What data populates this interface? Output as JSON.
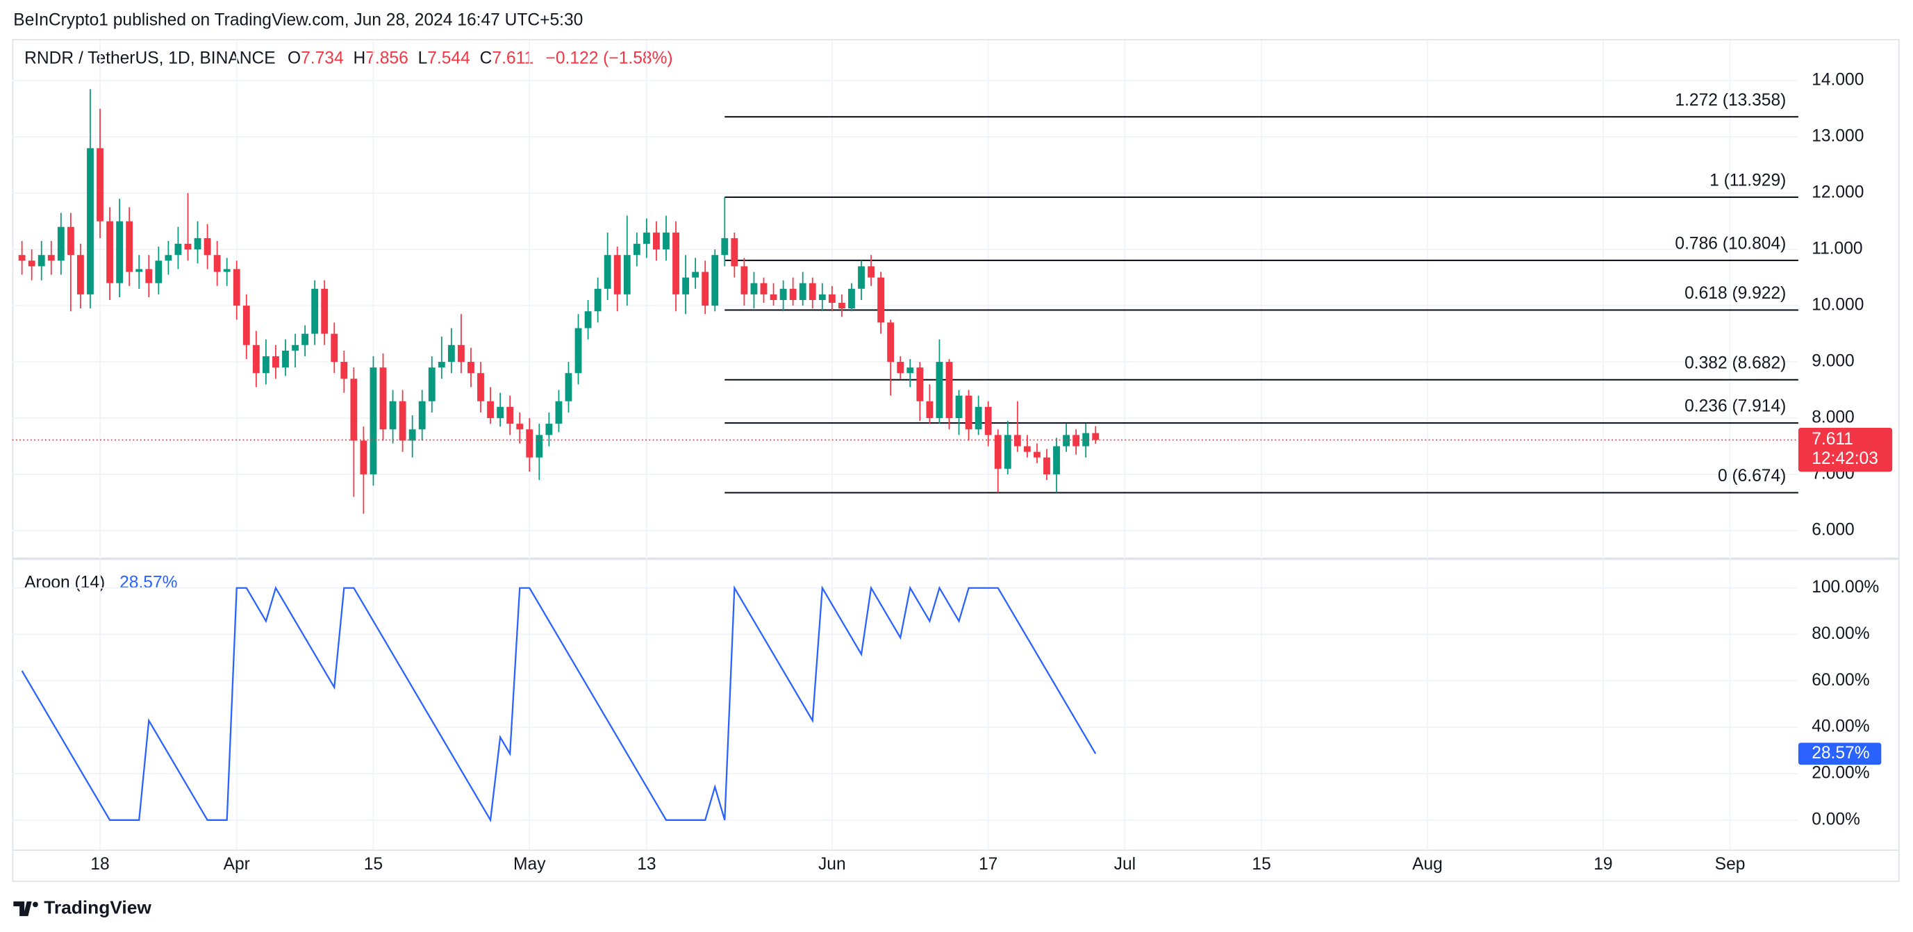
{
  "header": {
    "title": "BeInCrypto1 published on TradingView.com, Jun 28, 2024 16:47 UTC+5:30",
    "brand": "TradingView"
  },
  "chart_data": [
    {
      "type": "candlestick",
      "symbol": "RNDR / TetherUS, 1D, BINANCE",
      "ohlc_legend": [
        {
          "key": "O",
          "value": "7.734"
        },
        {
          "key": "H",
          "value": "7.856"
        },
        {
          "key": "L",
          "value": "7.544"
        },
        {
          "key": "C",
          "value": "7.611"
        }
      ],
      "change": "−0.122 (−1.58%)",
      "x_start": "2024-03-10",
      "interval": "1D",
      "xlim": [
        "2024-03-09",
        "2024-09-08"
      ],
      "xticks": [
        {
          "value": "2024-03-18",
          "label": "18"
        },
        {
          "value": "2024-04-01",
          "label": "Apr"
        },
        {
          "value": "2024-04-15",
          "label": "15"
        },
        {
          "value": "2024-05-01",
          "label": "May"
        },
        {
          "value": "2024-05-13",
          "label": "13"
        },
        {
          "value": "2024-06-01",
          "label": "Jun"
        },
        {
          "value": "2024-06-17",
          "label": "17"
        },
        {
          "value": "2024-07-01",
          "label": "Jul"
        },
        {
          "value": "2024-07-15",
          "label": "15"
        },
        {
          "value": "2024-08-01",
          "label": "Aug"
        },
        {
          "value": "2024-08-19",
          "label": "19"
        },
        {
          "value": "2024-09-01",
          "label": "Sep"
        }
      ],
      "ylim": [
        5.5,
        14.74
      ],
      "yticks": [
        {
          "value": 6,
          "label": "6.000"
        },
        {
          "value": 7,
          "label": "7.000"
        },
        {
          "value": 8,
          "label": "8.000"
        },
        {
          "value": 9,
          "label": "9.000"
        },
        {
          "value": 10,
          "label": "10.000"
        },
        {
          "value": 11,
          "label": "11.000"
        },
        {
          "value": 12,
          "label": "12.000"
        },
        {
          "value": 13,
          "label": "13.000"
        },
        {
          "value": 14,
          "label": "14.000"
        }
      ],
      "up_color": "#089981",
      "down_color": "#f23645",
      "candles": [
        [
          10.9,
          11.15,
          10.55,
          10.8
        ],
        [
          10.8,
          11.0,
          10.45,
          10.7
        ],
        [
          10.7,
          11.15,
          10.45,
          10.9
        ],
        [
          10.9,
          11.15,
          10.55,
          10.8
        ],
        [
          10.8,
          11.65,
          10.55,
          11.4
        ],
        [
          11.4,
          11.65,
          9.9,
          10.9
        ],
        [
          10.9,
          11.1,
          9.95,
          10.2
        ],
        [
          10.2,
          13.85,
          9.95,
          12.8
        ],
        [
          12.8,
          13.5,
          11.2,
          11.5
        ],
        [
          11.5,
          11.75,
          10.1,
          10.4
        ],
        [
          10.4,
          11.9,
          10.15,
          11.5
        ],
        [
          11.5,
          11.75,
          10.35,
          10.6
        ],
        [
          10.6,
          10.9,
          10.3,
          10.65
        ],
        [
          10.65,
          10.9,
          10.15,
          10.4
        ],
        [
          10.4,
          11.05,
          10.2,
          10.8
        ],
        [
          10.8,
          11.15,
          10.55,
          10.9
        ],
        [
          10.9,
          11.4,
          10.65,
          11.1
        ],
        [
          11.1,
          12.0,
          10.8,
          11.0
        ],
        [
          11.0,
          11.5,
          10.75,
          11.2
        ],
        [
          11.2,
          11.45,
          10.65,
          10.9
        ],
        [
          10.9,
          11.15,
          10.35,
          10.6
        ],
        [
          10.6,
          10.85,
          10.35,
          10.65
        ],
        [
          10.65,
          10.8,
          9.75,
          10.0
        ],
        [
          10.0,
          10.2,
          9.05,
          9.3
        ],
        [
          9.3,
          9.55,
          8.55,
          8.8
        ],
        [
          8.8,
          9.4,
          8.6,
          9.1
        ],
        [
          9.1,
          9.3,
          8.7,
          8.9
        ],
        [
          8.9,
          9.4,
          8.75,
          9.2
        ],
        [
          9.2,
          9.5,
          8.9,
          9.3
        ],
        [
          9.3,
          9.65,
          9.1,
          9.5
        ],
        [
          9.5,
          10.45,
          9.3,
          10.3
        ],
        [
          10.3,
          10.45,
          9.3,
          9.5
        ],
        [
          9.5,
          9.7,
          8.8,
          9.0
        ],
        [
          9.0,
          9.2,
          8.45,
          8.7
        ],
        [
          8.7,
          8.9,
          6.6,
          7.6
        ],
        [
          7.6,
          7.85,
          6.3,
          7.0
        ],
        [
          7.0,
          9.1,
          6.8,
          8.9
        ],
        [
          8.9,
          9.15,
          7.6,
          7.8
        ],
        [
          7.8,
          8.5,
          7.55,
          8.3
        ],
        [
          8.3,
          8.5,
          7.4,
          7.6
        ],
        [
          7.6,
          8.05,
          7.3,
          7.8
        ],
        [
          7.8,
          8.5,
          7.6,
          8.3
        ],
        [
          8.3,
          9.1,
          8.1,
          8.9
        ],
        [
          8.9,
          9.45,
          8.7,
          9.0
        ],
        [
          9.0,
          9.6,
          8.8,
          9.3
        ],
        [
          9.3,
          9.85,
          8.8,
          9.0
        ],
        [
          9.0,
          9.25,
          8.55,
          8.8
        ],
        [
          8.8,
          9.0,
          8.1,
          8.3
        ],
        [
          8.3,
          8.55,
          7.9,
          8.0
        ],
        [
          8.0,
          8.45,
          7.85,
          8.2
        ],
        [
          8.2,
          8.4,
          7.7,
          7.9
        ],
        [
          7.9,
          8.1,
          7.55,
          7.8
        ],
        [
          7.8,
          8.0,
          7.05,
          7.3
        ],
        [
          7.3,
          7.9,
          6.9,
          7.7
        ],
        [
          7.7,
          8.1,
          7.5,
          7.9
        ],
        [
          7.9,
          8.5,
          7.75,
          8.3
        ],
        [
          8.3,
          9.0,
          8.1,
          8.8
        ],
        [
          8.8,
          9.85,
          8.6,
          9.6
        ],
        [
          9.6,
          10.1,
          9.4,
          9.9
        ],
        [
          9.9,
          10.5,
          9.7,
          10.3
        ],
        [
          10.3,
          11.3,
          10.1,
          10.9
        ],
        [
          10.9,
          11.05,
          9.9,
          10.2
        ],
        [
          10.2,
          11.6,
          10.0,
          10.9
        ],
        [
          10.9,
          11.3,
          10.7,
          11.1
        ],
        [
          11.1,
          11.55,
          10.85,
          11.3
        ],
        [
          11.3,
          11.5,
          10.8,
          11.0
        ],
        [
          11.0,
          11.6,
          10.8,
          11.3
        ],
        [
          11.3,
          11.5,
          9.9,
          10.2
        ],
        [
          10.2,
          10.9,
          9.85,
          10.5
        ],
        [
          10.5,
          10.85,
          10.3,
          10.6
        ],
        [
          10.6,
          10.8,
          9.85,
          10.0
        ],
        [
          10.0,
          11.0,
          9.9,
          10.9
        ],
        [
          10.9,
          11.929,
          10.7,
          11.2
        ],
        [
          11.2,
          11.3,
          10.5,
          10.7
        ],
        [
          10.7,
          10.85,
          10.0,
          10.2
        ],
        [
          10.2,
          10.6,
          9.95,
          10.4
        ],
        [
          10.4,
          10.5,
          10.05,
          10.2
        ],
        [
          10.2,
          10.4,
          10.0,
          10.1
        ],
        [
          10.1,
          10.45,
          9.9,
          10.3
        ],
        [
          10.3,
          10.5,
          10.0,
          10.1
        ],
        [
          10.1,
          10.6,
          10.0,
          10.4
        ],
        [
          10.4,
          10.5,
          9.95,
          10.1
        ],
        [
          10.1,
          10.4,
          9.9,
          10.2
        ],
        [
          10.2,
          10.35,
          9.9,
          10.05
        ],
        [
          10.05,
          10.2,
          9.8,
          9.95
        ],
        [
          9.95,
          10.4,
          9.9,
          10.3
        ],
        [
          10.3,
          10.8,
          10.1,
          10.7
        ],
        [
          10.7,
          10.9,
          10.35,
          10.5
        ],
        [
          10.5,
          10.6,
          9.5,
          9.7
        ],
        [
          9.7,
          9.75,
          8.4,
          9.0
        ],
        [
          9.0,
          9.1,
          8.7,
          8.8
        ],
        [
          8.8,
          9.05,
          8.55,
          8.9
        ],
        [
          8.9,
          9.0,
          7.95,
          8.3
        ],
        [
          8.3,
          8.6,
          7.9,
          8.0
        ],
        [
          8.0,
          9.4,
          7.9,
          9.0
        ],
        [
          9.0,
          9.05,
          7.8,
          8.0
        ],
        [
          8.0,
          8.5,
          7.7,
          8.4
        ],
        [
          8.4,
          8.5,
          7.6,
          7.8
        ],
        [
          7.8,
          8.4,
          7.7,
          8.2
        ],
        [
          8.2,
          8.3,
          7.5,
          7.7
        ],
        [
          7.7,
          7.8,
          6.674,
          7.1
        ],
        [
          7.1,
          7.95,
          7.0,
          7.7
        ],
        [
          7.7,
          8.3,
          7.4,
          7.5
        ],
        [
          7.5,
          7.7,
          7.3,
          7.4
        ],
        [
          7.4,
          7.55,
          7.2,
          7.3
        ],
        [
          7.3,
          7.45,
          6.9,
          7.0
        ],
        [
          7.0,
          7.65,
          6.674,
          7.5
        ],
        [
          7.5,
          7.9,
          7.4,
          7.7
        ],
        [
          7.7,
          7.8,
          7.35,
          7.5
        ],
        [
          7.5,
          7.9,
          7.3,
          7.734
        ],
        [
          7.734,
          7.856,
          7.544,
          7.611
        ]
      ],
      "last_price": {
        "value": 7.611,
        "label": "7.611",
        "countdown": "12:42:03"
      },
      "fib_start": "2024-05-21",
      "fib_color": "#131722",
      "fib_levels": [
        {
          "value": 13.358,
          "label": "1.272 (13.358)"
        },
        {
          "value": 11.929,
          "label": "1 (11.929)"
        },
        {
          "value": 10.804,
          "label": "0.786 (10.804)"
        },
        {
          "value": 9.922,
          "label": "0.618 (9.922)"
        },
        {
          "value": 8.682,
          "label": "0.382 (8.682)"
        },
        {
          "value": 7.914,
          "label": "0.236 (7.914)"
        },
        {
          "value": 6.674,
          "label": "0 (6.674)"
        }
      ],
      "grid": true
    },
    {
      "type": "line",
      "title": "Aroon (14)",
      "current": {
        "value": 28.57,
        "label": "28.57%"
      },
      "ylim": [
        -13,
        112.6
      ],
      "yticks": [
        {
          "value": 0,
          "label": "0.00%"
        },
        {
          "value": 20,
          "label": "20.00%"
        },
        {
          "value": 40,
          "label": "40.00%"
        },
        {
          "value": 60,
          "label": "60.00%"
        },
        {
          "value": 80,
          "label": "80.00%"
        },
        {
          "value": 100,
          "label": "100.00%"
        }
      ],
      "series": [
        {
          "name": "Aroon (14)",
          "color": "#2962ff",
          "values": [
            64.29,
            57.14,
            50,
            42.86,
            35.71,
            28.57,
            21.43,
            14.29,
            7.14,
            0,
            0,
            0,
            0,
            42.86,
            35.71,
            28.57,
            21.43,
            14.29,
            7.14,
            0,
            0,
            0,
            100,
            100,
            92.86,
            85.71,
            100,
            92.86,
            85.71,
            78.57,
            71.43,
            64.29,
            57.14,
            100,
            100,
            92.86,
            85.71,
            78.57,
            71.43,
            64.29,
            57.14,
            50,
            42.86,
            35.71,
            28.57,
            21.43,
            14.29,
            7.14,
            0,
            35.71,
            28.57,
            100,
            100,
            92.86,
            85.71,
            78.57,
            71.43,
            64.29,
            57.14,
            50,
            42.86,
            35.71,
            28.57,
            21.43,
            14.29,
            7.14,
            0,
            0,
            0,
            0,
            0,
            14.29,
            0,
            100,
            92.86,
            85.71,
            78.57,
            71.43,
            64.29,
            57.14,
            50,
            42.86,
            100,
            92.86,
            85.71,
            78.57,
            71.43,
            100,
            92.86,
            85.71,
            78.57,
            100,
            92.86,
            85.71,
            100,
            92.86,
            85.71,
            100,
            100,
            100,
            100,
            92.86,
            85.71,
            78.57,
            71.43,
            64.29,
            57.14,
            50,
            42.86,
            35.71,
            28.57
          ]
        }
      ]
    }
  ]
}
